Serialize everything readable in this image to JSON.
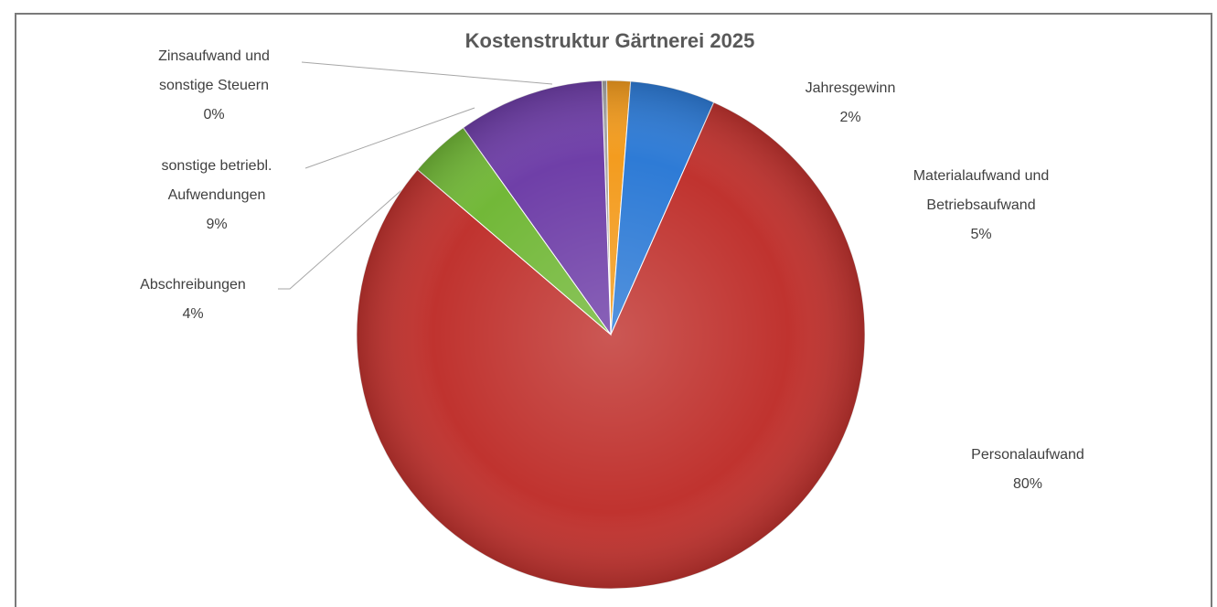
{
  "chart_data": {
    "type": "pie",
    "title": "Kostenstruktur Gärtnerei 2025",
    "slices": [
      {
        "name": "Zinsaufwand und sonstige Steuern",
        "label_lines": [
          "Zinsaufwand und",
          "sonstige Steuern",
          "0%"
        ],
        "value": 0.3,
        "display": "0%",
        "color": "#a6a6a6"
      },
      {
        "name": "Jahresgewinn",
        "label_lines": [
          "Jahresgewinn",
          "2%"
        ],
        "value": 1.5,
        "display": "2%",
        "color": "#f39c1f"
      },
      {
        "name": "Materialaufwand und Betriebsaufwand",
        "label_lines": [
          "Materialaufwand und",
          "Betriebsaufwand",
          "5%"
        ],
        "value": 5.4,
        "display": "5%",
        "color": "#2e7bd6"
      },
      {
        "name": "Personalaufwand",
        "label_lines": [
          "Personalaufwand",
          "80%"
        ],
        "value": 79.6,
        "display": "80%",
        "color": "#c0332f"
      },
      {
        "name": "Abschreibungen",
        "label_lines": [
          "Abschreibungen",
          "4%"
        ],
        "value": 3.9,
        "display": "4%",
        "color": "#72b838"
      },
      {
        "name": "sonstige betriebl. Aufwendungen",
        "label_lines": [
          "sonstige betriebl.",
          "Aufwendungen",
          "9%"
        ],
        "value": 9.3,
        "display": "9%",
        "color": "#6f3fa8"
      }
    ],
    "legend": "none"
  }
}
